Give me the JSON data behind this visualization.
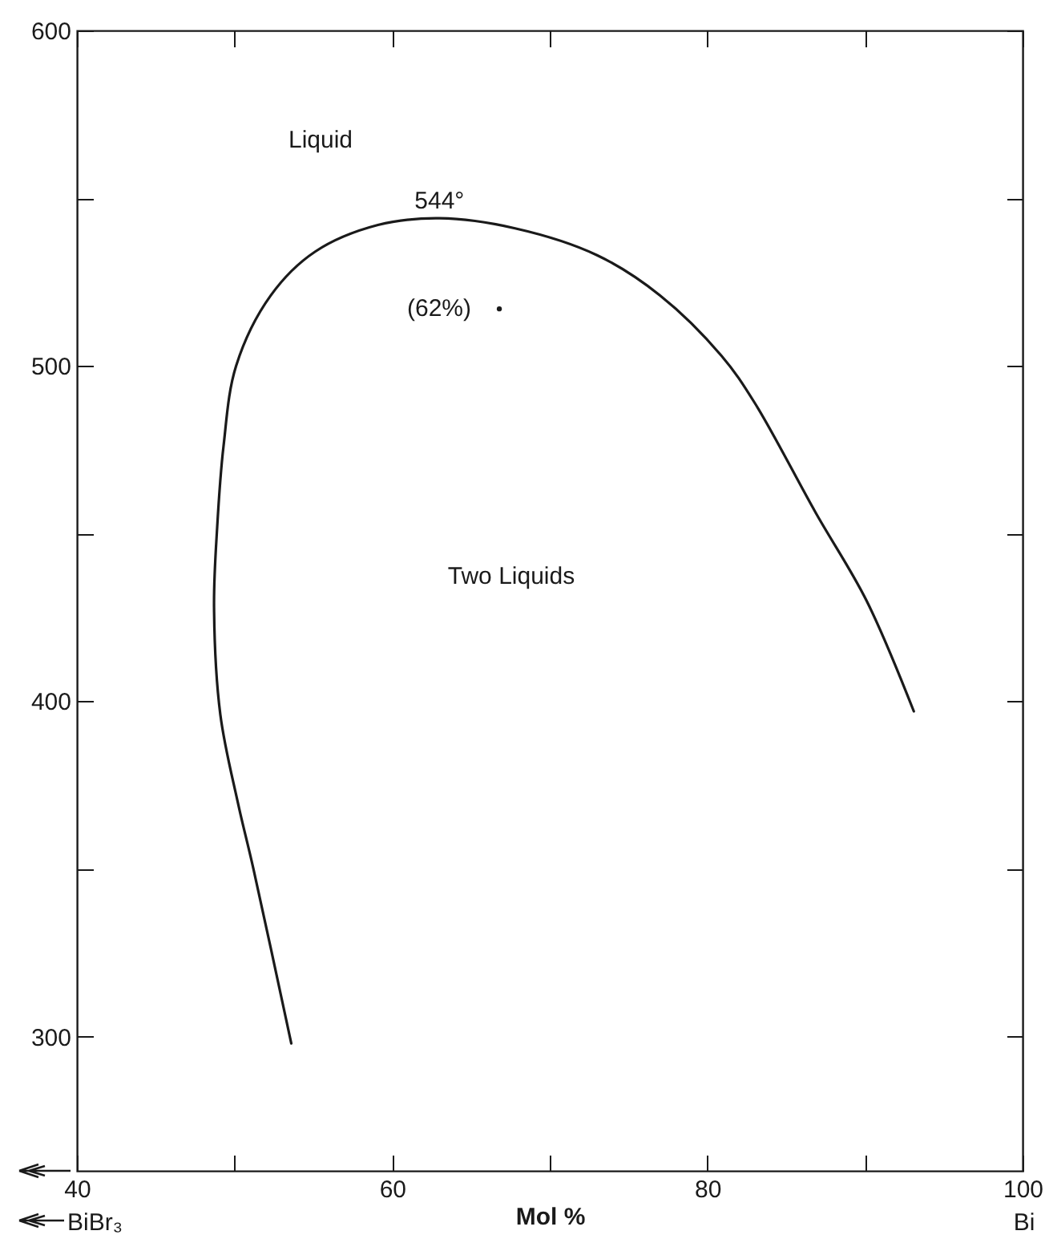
{
  "chart_data": {
    "type": "line",
    "xlabel": "Mol %",
    "xlim": [
      40,
      100
    ],
    "xticks": [
      40,
      {
        "value": 50,
        "label": null
      },
      60,
      {
        "value": 70,
        "label": null
      },
      80,
      {
        "value": 90,
        "label": null
      },
      100
    ],
    "ylim": [
      260,
      600
    ],
    "yticks": [
      300,
      {
        "value": 350,
        "label": null
      },
      400,
      {
        "value": 450,
        "label": null
      },
      500,
      {
        "value": 550,
        "label": null
      },
      600
    ],
    "grid": false,
    "line_style": "solid",
    "series": [
      {
        "color": "#1a1a1a",
        "x": [
          53.6,
          51.2,
          50.2,
          49.1,
          48.7,
          48.9,
          49.3,
          50.1,
          52.3,
          55.1,
          59.1,
          63,
          67.8,
          73,
          77,
          80.9,
          83,
          86.9,
          90.1,
          93.1
        ],
        "values": [
          298,
          350,
          370,
          396,
          428,
          452,
          476,
          500,
          521,
          534,
          542,
          544,
          541,
          533,
          521,
          503,
          489,
          456,
          430,
          397
        ]
      },
      {
        "type": "scatter",
        "color": "#1a1a1a",
        "x": [
          66.8
        ],
        "values": [
          517
        ]
      }
    ],
    "annotations": [
      "Liquid",
      {
        "text": "544°",
        "x": 63,
        "y": 544
      },
      "(62%)",
      "Two Liquids",
      "BiBr₃",
      "Bi"
    ]
  }
}
